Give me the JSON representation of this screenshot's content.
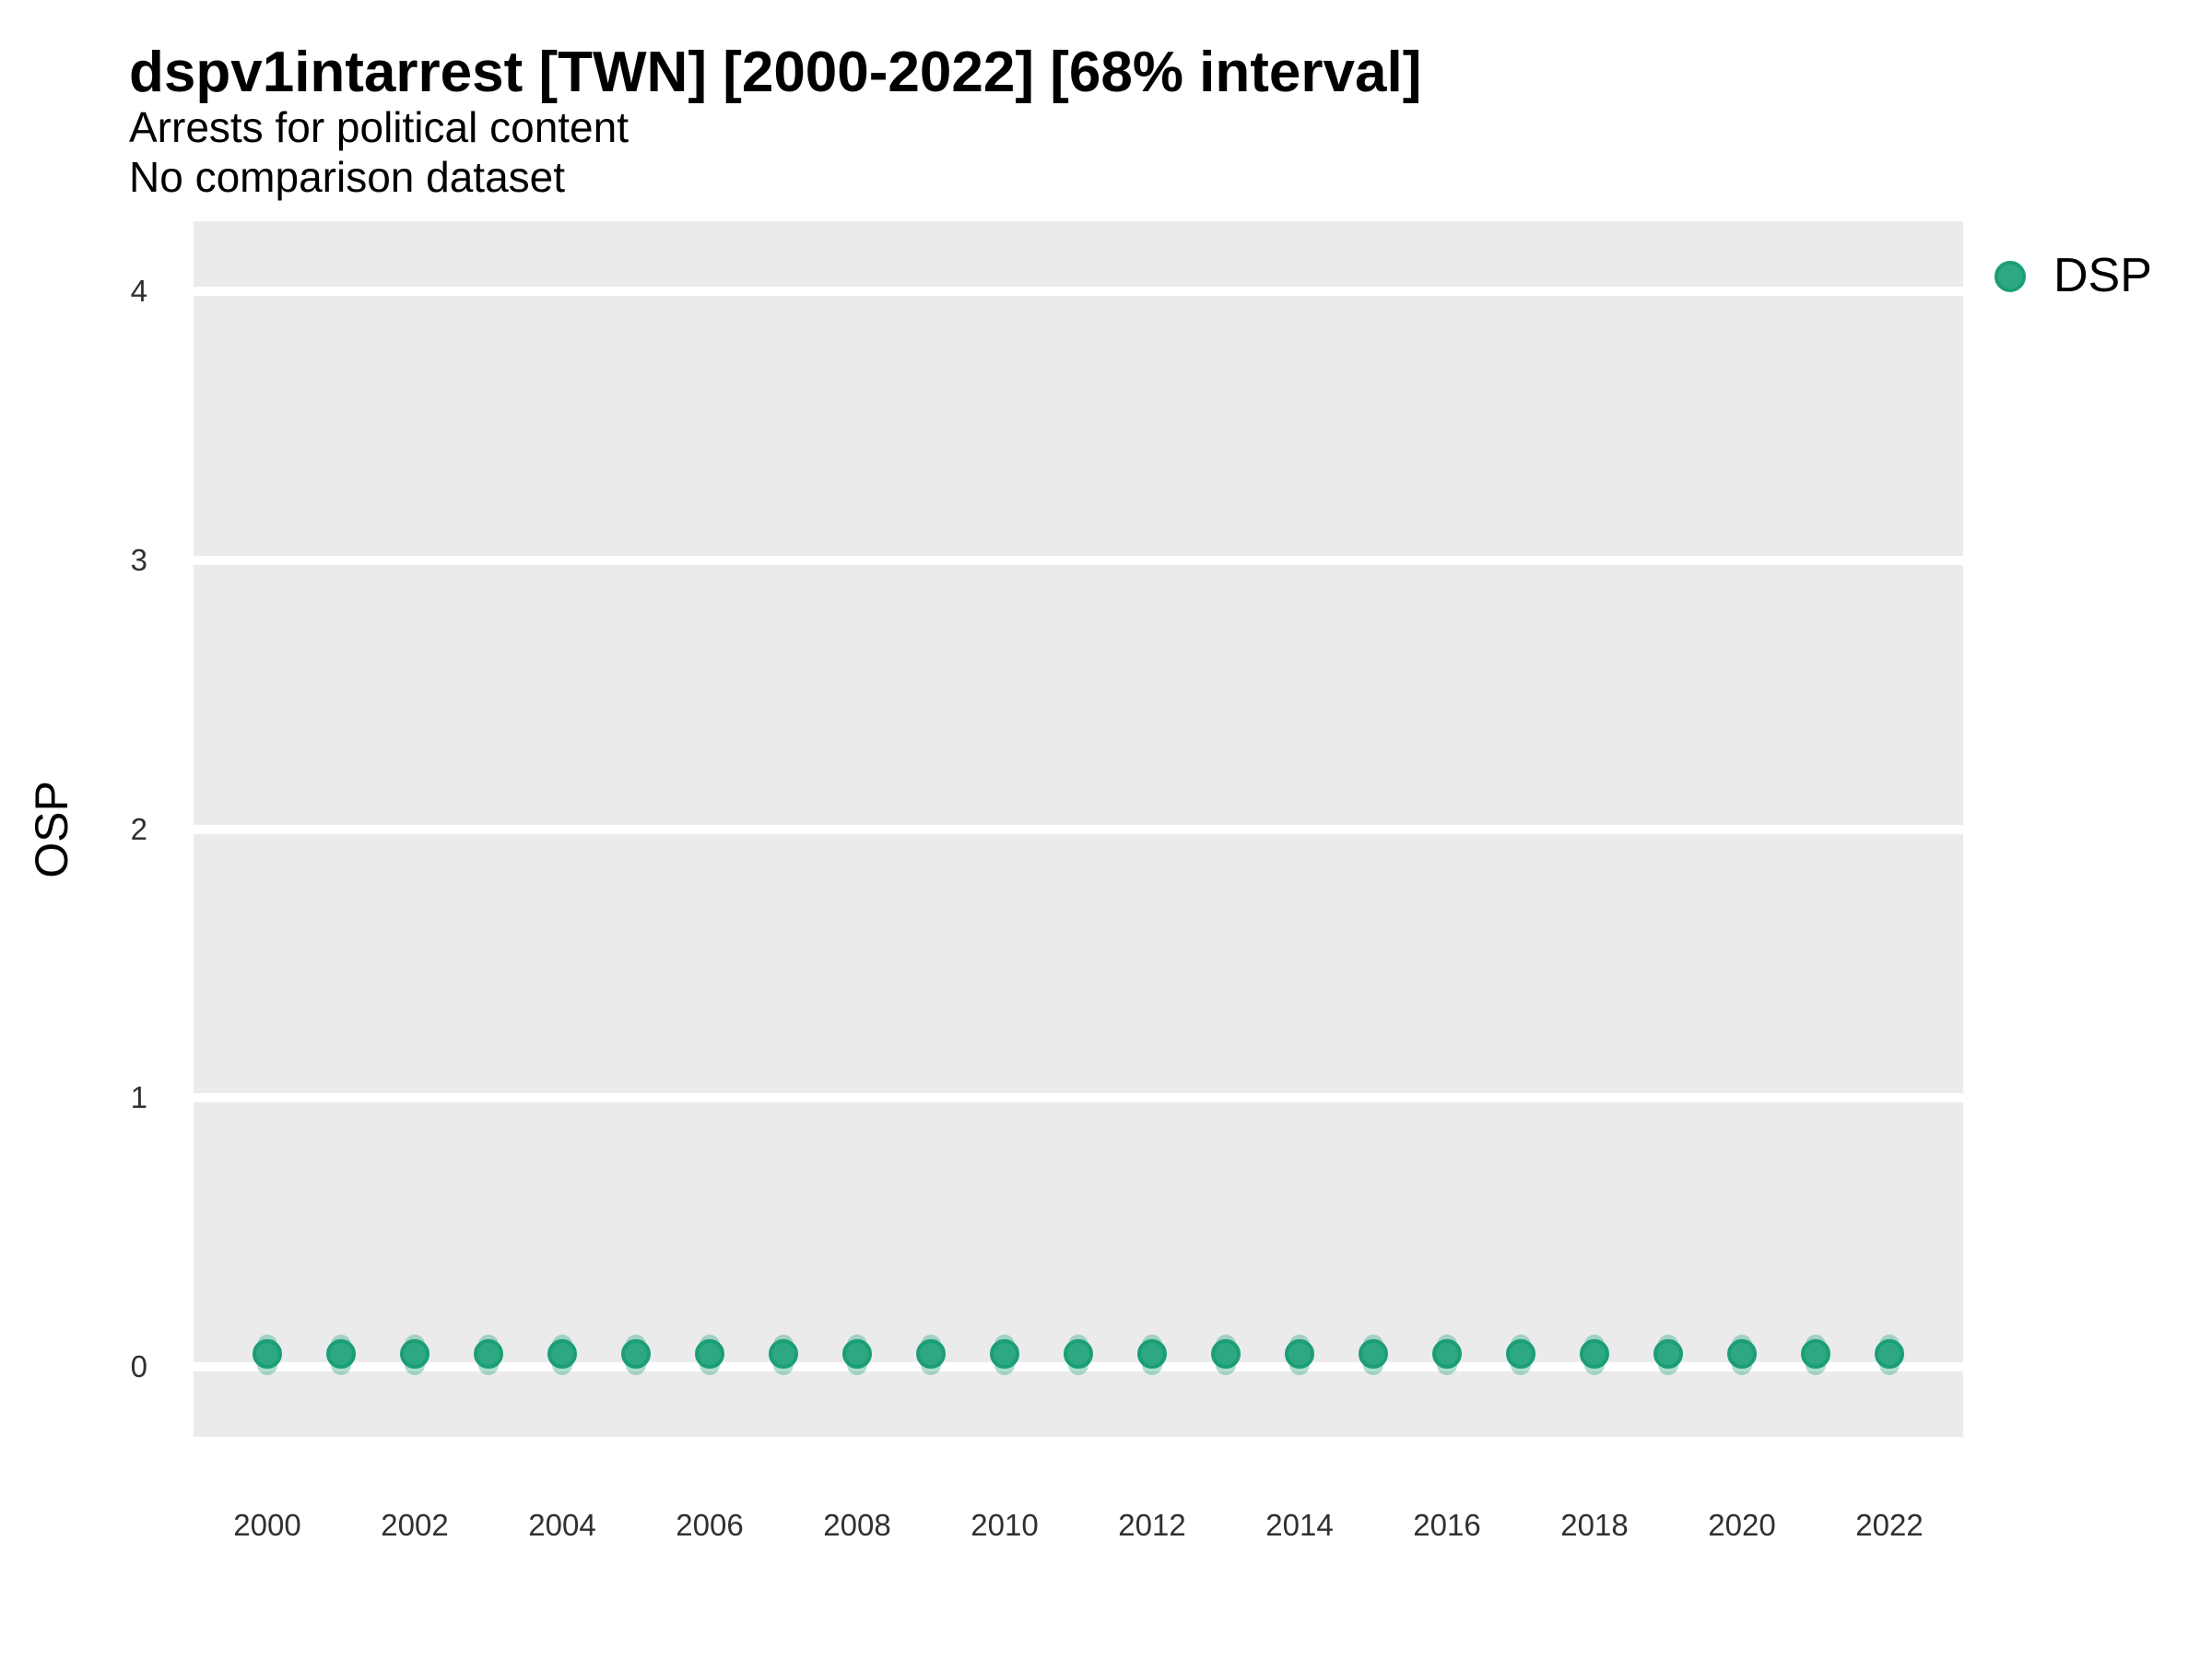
{
  "header": {
    "title": "dspv1intarrest [TWN] [2000-2022] [68% interval]",
    "subtitle": "Arrests for political content",
    "comparison_note": "No comparison dataset"
  },
  "axes": {
    "y": {
      "title": "OSP",
      "ticks": [
        0,
        1,
        2,
        3,
        4
      ],
      "range": [
        -0.26,
        4.26
      ]
    },
    "x": {
      "title": "",
      "ticks": [
        2000,
        2002,
        2004,
        2006,
        2008,
        2010,
        2012,
        2014,
        2016,
        2018,
        2020,
        2022
      ],
      "range": [
        1999,
        2023
      ]
    }
  },
  "legend": {
    "position": "right-top",
    "items": [
      {
        "label": "DSP",
        "marker": "circle"
      }
    ]
  },
  "colors": {
    "point_fill": "#2EA882",
    "point_stroke": "#1B9E77",
    "interval_band": "rgba(27, 158, 119, 0.35)",
    "panel_background": "#EBEBEB",
    "gridline": "#FFFFFF",
    "title_text": "#000000",
    "tick_text": "#303030"
  },
  "chart_data": {
    "type": "scatter",
    "title": "dspv1intarrest [TWN] [2000-2022] [68% interval]",
    "subtitle": "Arrests for political content",
    "note": "No comparison dataset",
    "xlabel": "",
    "ylabel": "OSP",
    "xlim": [
      1999,
      2023
    ],
    "ylim": [
      -0.26,
      4.26
    ],
    "x_ticks": [
      2000,
      2002,
      2004,
      2006,
      2008,
      2010,
      2012,
      2014,
      2016,
      2018,
      2020,
      2022
    ],
    "y_ticks": [
      0,
      1,
      2,
      3,
      4
    ],
    "grid": "horizontal-major-only",
    "legend_position": "right-top",
    "interval_level": "68%",
    "series": [
      {
        "name": "DSP",
        "x": [
          2000,
          2001,
          2002,
          2003,
          2004,
          2005,
          2006,
          2007,
          2008,
          2009,
          2010,
          2011,
          2012,
          2013,
          2014,
          2015,
          2016,
          2017,
          2018,
          2019,
          2020,
          2021,
          2022
        ],
        "values": [
          0.05,
          0.05,
          0.05,
          0.05,
          0.05,
          0.05,
          0.05,
          0.05,
          0.05,
          0.05,
          0.05,
          0.05,
          0.05,
          0.05,
          0.05,
          0.05,
          0.05,
          0.05,
          0.05,
          0.05,
          0.05,
          0.05,
          0.05
        ],
        "interval_lower": [
          -0.03,
          -0.03,
          -0.03,
          -0.03,
          -0.03,
          -0.03,
          -0.03,
          -0.03,
          -0.03,
          -0.03,
          -0.03,
          -0.03,
          -0.03,
          -0.03,
          -0.03,
          -0.03,
          -0.03,
          -0.03,
          -0.03,
          -0.03,
          -0.03,
          -0.03,
          -0.03
        ],
        "interval_upper": [
          0.12,
          0.12,
          0.12,
          0.12,
          0.12,
          0.12,
          0.12,
          0.12,
          0.12,
          0.12,
          0.12,
          0.12,
          0.12,
          0.12,
          0.12,
          0.12,
          0.12,
          0.12,
          0.12,
          0.12,
          0.12,
          0.12,
          0.12
        ]
      }
    ]
  }
}
